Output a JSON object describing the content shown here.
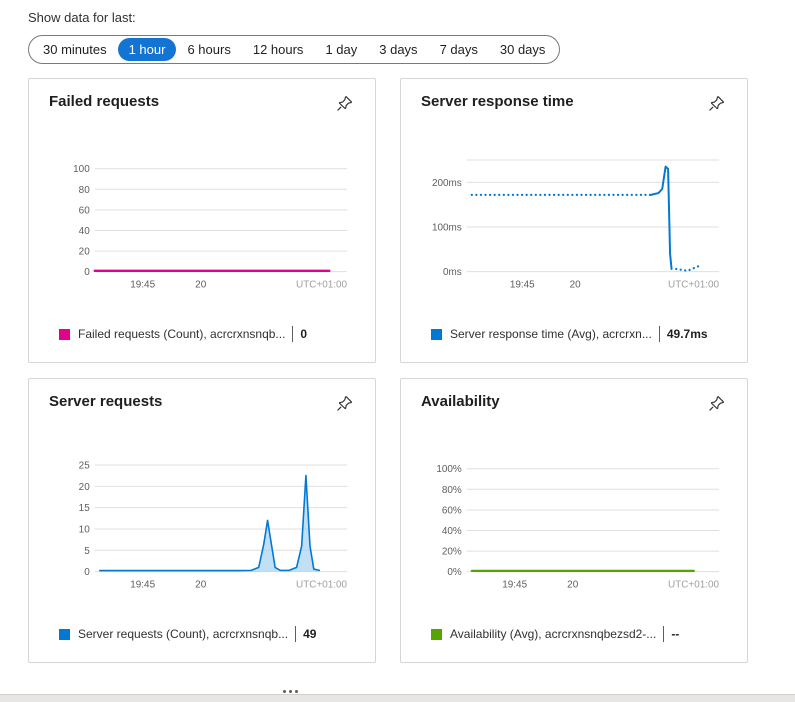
{
  "time_picker": {
    "label": "Show data for last:",
    "options": [
      {
        "label": "30 minutes",
        "selected": false
      },
      {
        "label": "1 hour",
        "selected": true
      },
      {
        "label": "6 hours",
        "selected": false
      },
      {
        "label": "12 hours",
        "selected": false
      },
      {
        "label": "1 day",
        "selected": false
      },
      {
        "label": "3 days",
        "selected": false
      },
      {
        "label": "7 days",
        "selected": false
      },
      {
        "label": "30 days",
        "selected": false
      }
    ],
    "selected_color": "#1474d4"
  },
  "cards": [
    {
      "title": "Failed requests",
      "legend": {
        "label": "Failed requests (Count), acrcrxnsnqb...",
        "value": "0",
        "color": "#e3008c"
      }
    },
    {
      "title": "Server response time",
      "legend": {
        "label": "Server response time (Avg), acrcrxn...",
        "value": "49.7ms",
        "color": "#0078d4"
      }
    },
    {
      "title": "Server requests",
      "legend": {
        "label": "Server requests (Count), acrcrxnsnqb...",
        "value": "49",
        "color": "#0078d4"
      }
    },
    {
      "title": "Availability",
      "legend": {
        "label": "Availability (Avg), acrcrxnsnqbezsd2-...",
        "value": "--",
        "color": "#57a300"
      }
    }
  ],
  "chart_data": [
    {
      "type": "line",
      "title": "Failed requests",
      "ymax": 112,
      "ylim": [
        0,
        100
      ],
      "yticks": [
        {
          "v": 0,
          "label": "0"
        },
        {
          "v": 20,
          "label": "20"
        },
        {
          "v": 40,
          "label": "40"
        },
        {
          "v": 60,
          "label": "60"
        },
        {
          "v": 80,
          "label": "80"
        },
        {
          "v": 100,
          "label": "100"
        }
      ],
      "xticks": [
        {
          "pos": 0.19,
          "label": "19:45"
        },
        {
          "pos": 0.42,
          "label": "20"
        }
      ],
      "tz_label": "UTC+01:00",
      "series": [
        {
          "name": "Failed requests (Count)",
          "color": "#e3008c",
          "style": "solid",
          "width": 2.4,
          "fill": false,
          "points": [
            [
              0.0,
              0.8
            ],
            [
              0.93,
              0.8
            ]
          ]
        }
      ]
    },
    {
      "type": "line",
      "title": "Server response time",
      "ymax": 258,
      "ylim": [
        0,
        250
      ],
      "yticks": [
        {
          "v": 0,
          "label": "0ms"
        },
        {
          "v": 100,
          "label": "100ms"
        },
        {
          "v": 200,
          "label": "200ms"
        },
        {
          "v": 250,
          "label": ""
        }
      ],
      "xticks": [
        {
          "pos": 0.22,
          "label": "19:45"
        },
        {
          "pos": 0.43,
          "label": "20"
        }
      ],
      "tz_label": "UTC+01:00",
      "series": [
        {
          "name": "Server response time (Avg)",
          "color": "#0078d4",
          "style": "dotted",
          "width": 2.2,
          "fill": false,
          "points": [
            [
              0.02,
              172
            ],
            [
              0.73,
              172
            ]
          ]
        },
        {
          "name": "Server response time (Avg)",
          "color": "#0078d4",
          "style": "solid",
          "width": 2,
          "fill": false,
          "points": [
            [
              0.73,
              172
            ],
            [
              0.76,
              176
            ],
            [
              0.775,
              185
            ],
            [
              0.788,
              235
            ],
            [
              0.798,
              230
            ],
            [
              0.806,
              40
            ],
            [
              0.812,
              6
            ]
          ]
        },
        {
          "name": "Server response time (Avg)",
          "color": "#0078d4",
          "style": "dotted",
          "width": 2.2,
          "fill": false,
          "points": [
            [
              0.83,
              6
            ],
            [
              0.875,
              2
            ],
            [
              0.93,
              15
            ]
          ]
        }
      ]
    },
    {
      "type": "area",
      "title": "Server requests",
      "ymax": 27,
      "ylim": [
        0,
        25
      ],
      "yticks": [
        {
          "v": 0,
          "label": "0"
        },
        {
          "v": 5,
          "label": "5"
        },
        {
          "v": 10,
          "label": "10"
        },
        {
          "v": 15,
          "label": "15"
        },
        {
          "v": 20,
          "label": "20"
        },
        {
          "v": 25,
          "label": "25"
        }
      ],
      "xticks": [
        {
          "pos": 0.19,
          "label": "19:45"
        },
        {
          "pos": 0.42,
          "label": "20"
        }
      ],
      "tz_label": "UTC+01:00",
      "series": [
        {
          "name": "Server requests (Count)",
          "color": "#0078d4",
          "style": "solid",
          "width": 1.6,
          "fill": true,
          "fill_color": "#8ec7ee",
          "points": [
            [
              0.02,
              0.25
            ],
            [
              0.57,
              0.25
            ],
            [
              0.62,
              0.3
            ],
            [
              0.65,
              1
            ],
            [
              0.67,
              6.5
            ],
            [
              0.685,
              12
            ],
            [
              0.7,
              6.5
            ],
            [
              0.715,
              1
            ],
            [
              0.735,
              0.3
            ],
            [
              0.77,
              0.3
            ],
            [
              0.8,
              1
            ],
            [
              0.82,
              6
            ],
            [
              0.837,
              22.5
            ],
            [
              0.853,
              6
            ],
            [
              0.868,
              0.6
            ],
            [
              0.89,
              0.3
            ]
          ]
        }
      ]
    },
    {
      "type": "line",
      "title": "Availability",
      "ymax": 112,
      "ylim": [
        0,
        100
      ],
      "yticks": [
        {
          "v": 0,
          "label": "0%"
        },
        {
          "v": 20,
          "label": "20%"
        },
        {
          "v": 40,
          "label": "40%"
        },
        {
          "v": 60,
          "label": "60%"
        },
        {
          "v": 80,
          "label": "80%"
        },
        {
          "v": 100,
          "label": "100%"
        }
      ],
      "xticks": [
        {
          "pos": 0.19,
          "label": "19:45"
        },
        {
          "pos": 0.42,
          "label": "20"
        }
      ],
      "tz_label": "UTC+01:00",
      "series": [
        {
          "name": "Availability (Avg)",
          "color": "#57a300",
          "style": "solid",
          "width": 2.2,
          "fill": false,
          "points": [
            [
              0.02,
              0.8
            ],
            [
              0.9,
              0.8
            ]
          ]
        }
      ]
    }
  ]
}
